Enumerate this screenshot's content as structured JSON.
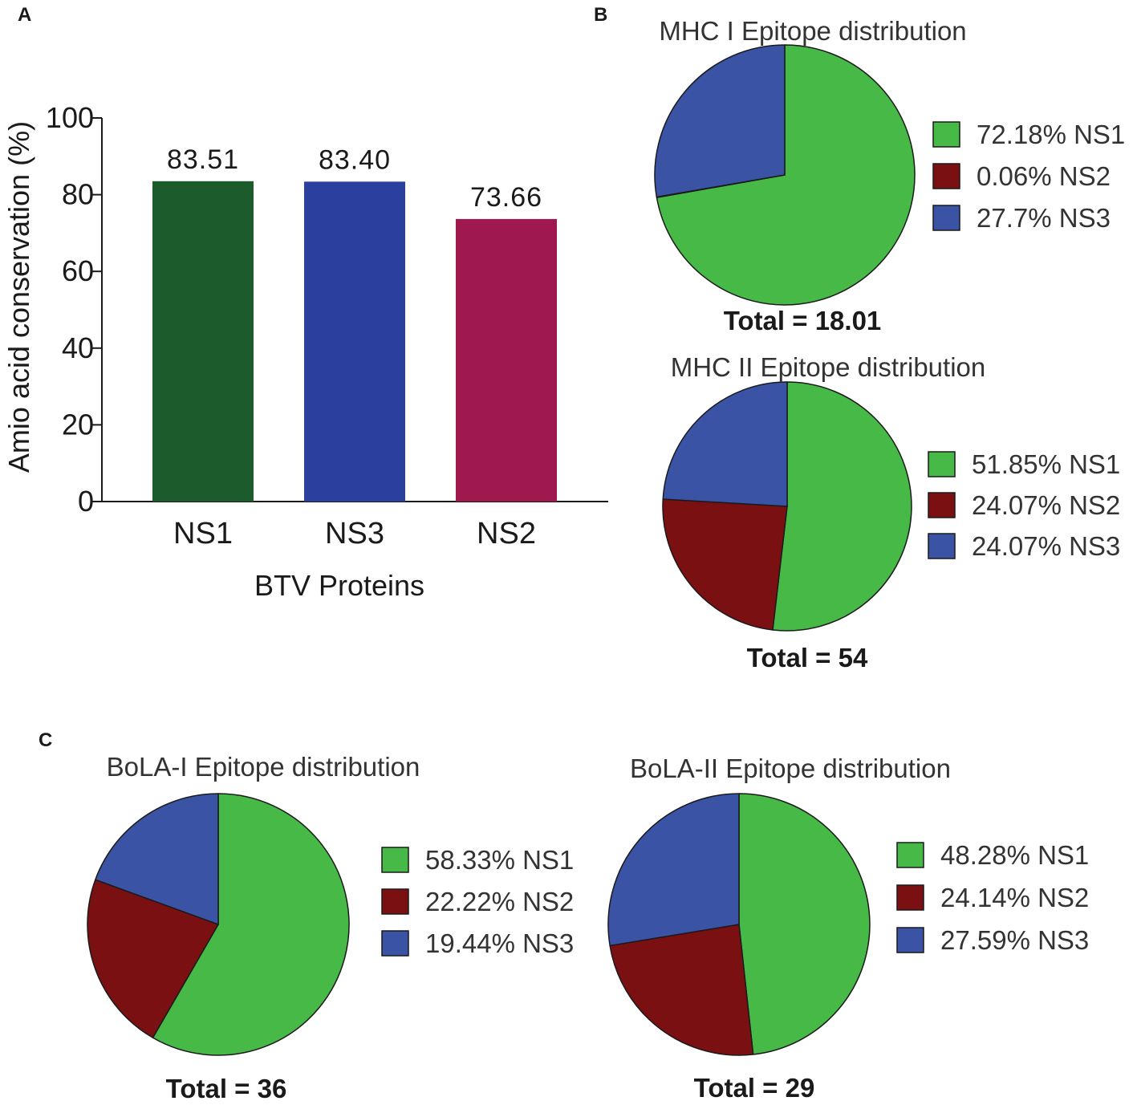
{
  "panels": {
    "a": "A",
    "b": "B",
    "c": "C"
  },
  "chart_data": [
    {
      "type": "bar",
      "id": "bar",
      "panel": "A",
      "title": "",
      "xlabel": "BTV Proteins",
      "ylabel": "Amio acid conservation (%)",
      "ylim": [
        0,
        100
      ],
      "yticks": [
        0,
        20,
        40,
        60,
        80,
        100
      ],
      "categories": [
        "NS1",
        "NS3",
        "NS2"
      ],
      "values": [
        83.51,
        83.4,
        73.66
      ],
      "value_labels": [
        "83.51",
        "83.40",
        "73.66"
      ],
      "colors": [
        "#1b5b2c",
        "#2b3f9e",
        "#a0194e"
      ]
    },
    {
      "type": "pie",
      "id": "mhc1",
      "panel": "B",
      "title": "MHC I Epitope distribution",
      "total": "Total = 18.01",
      "slices": [
        {
          "label": "72.18% NS1",
          "value": 72.18,
          "color": "#46b947"
        },
        {
          "label": "0.06% NS2",
          "value": 0.06,
          "color": "#7b1012"
        },
        {
          "label": "27.7% NS3",
          "value": 27.7,
          "color": "#3a53a4"
        }
      ]
    },
    {
      "type": "pie",
      "id": "mhc2",
      "panel": "B",
      "title": "MHC II Epitope distribution",
      "total": "Total = 54",
      "slices": [
        {
          "label": "51.85% NS1",
          "value": 51.85,
          "color": "#46b947"
        },
        {
          "label": "24.07% NS2",
          "value": 24.07,
          "color": "#7b1012"
        },
        {
          "label": "24.07% NS3",
          "value": 24.07,
          "color": "#3a53a4"
        }
      ]
    },
    {
      "type": "pie",
      "id": "bola1",
      "panel": "C",
      "title": "BoLA-I Epitope distribution",
      "total": "Total = 36",
      "slices": [
        {
          "label": "58.33% NS1",
          "value": 58.33,
          "color": "#46b947"
        },
        {
          "label": "22.22% NS2",
          "value": 22.22,
          "color": "#7b1012"
        },
        {
          "label": "19.44% NS3",
          "value": 19.44,
          "color": "#3a53a4"
        }
      ]
    },
    {
      "type": "pie",
      "id": "bola2",
      "panel": "C",
      "title": "BoLA-II Epitope distribution",
      "total": "Total = 29",
      "slices": [
        {
          "label": "48.28% NS1",
          "value": 48.28,
          "color": "#46b947"
        },
        {
          "label": "24.14% NS2",
          "value": 24.14,
          "color": "#7b1012"
        },
        {
          "label": "27.59% NS3",
          "value": 27.59,
          "color": "#3a53a4"
        }
      ]
    }
  ]
}
